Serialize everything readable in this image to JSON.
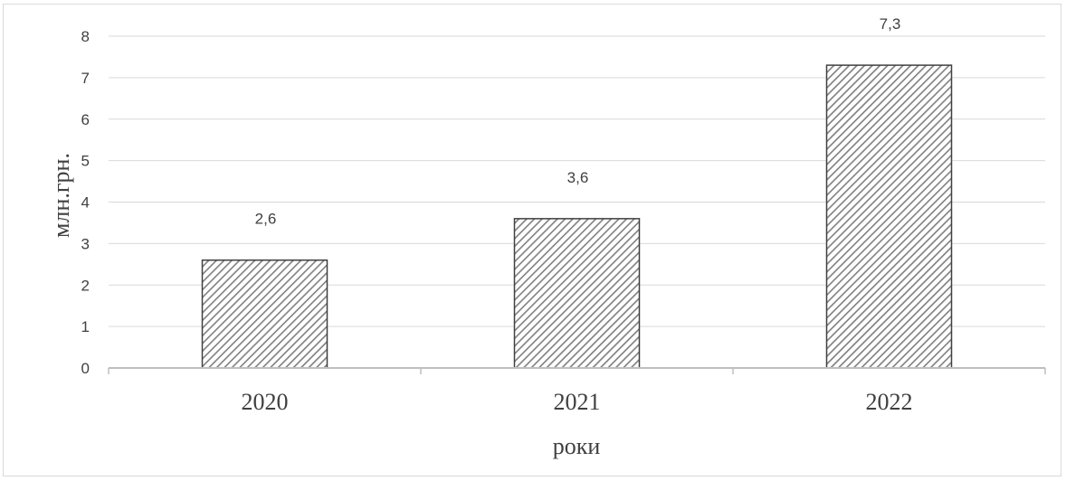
{
  "chart_data": {
    "type": "bar",
    "categories": [
      "2020",
      "2021",
      "2022"
    ],
    "values": [
      2.6,
      3.6,
      7.3
    ],
    "data_labels": [
      "2,6",
      "3,6",
      "7,3"
    ],
    "title": "",
    "xlabel": "роки",
    "ylabel": "млн.грн.",
    "ylim": [
      0,
      8
    ],
    "yticks": [
      0,
      1,
      2,
      3,
      4,
      5,
      6,
      7,
      8
    ],
    "grid": true,
    "legend": "none",
    "bar_fill": "diagonal-hatch",
    "colors": {
      "bar_hatch": "#7f7f7f",
      "bar_outline": "#404040",
      "grid": "#d9d9d9",
      "axis": "#bfbfbf",
      "text": "#404040"
    }
  }
}
